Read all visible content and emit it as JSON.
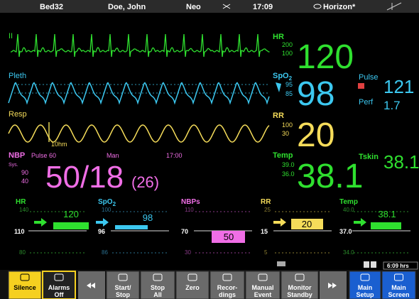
{
  "top_bar": {
    "bed": "Bed32",
    "patient": "Doe, John",
    "category": "Neo",
    "time": "17:09",
    "network": "Horizon*"
  },
  "waves": {
    "ecg": "II",
    "pleth": "Pleth",
    "resp": "Resp",
    "resp_scale": "10hm"
  },
  "numerics": {
    "hr": {
      "label": "HR",
      "high": "200",
      "low": "100",
      "value": "120"
    },
    "spo2": {
      "label": "SpO2",
      "high": "95",
      "low": "85",
      "value": "98"
    },
    "pulse": {
      "label": "Pulse",
      "value": "121",
      "perf_label": "Perf",
      "perf_value": "1.7"
    },
    "rr": {
      "label": "RR",
      "high": "100",
      "low": "30",
      "value": "20"
    },
    "nbp": {
      "label": "NBP",
      "pulse": "Pulse 60",
      "mode": "Man",
      "time": "17:00",
      "sys_label": "Sys.",
      "high": "90",
      "low": "40",
      "value": "50/18",
      "mean": "(26)"
    },
    "temp": {
      "label": "Temp",
      "high": "39.0",
      "low": "36.0",
      "value": "38.1"
    },
    "tskin": {
      "label": "Tskin",
      "value": "38.1"
    }
  },
  "trends": [
    {
      "label": "HR",
      "top": "140",
      "value": "120",
      "mid": "110",
      "bottom": "80"
    },
    {
      "label": "SpO2",
      "top": "100",
      "value": "98",
      "mid": "96",
      "bottom": "86"
    },
    {
      "label": "NBPs",
      "top": "110",
      "value": "50",
      "mid": "70",
      "bottom": "30"
    },
    {
      "label": "RR",
      "top": "25",
      "value": "20",
      "mid": "15",
      "bottom": "5"
    },
    {
      "label": "Temp",
      "top": "40.0",
      "value": "38.1",
      "mid": "37.0",
      "bottom": "34.0"
    }
  ],
  "trend_period": "6:09 hrs",
  "buttons": [
    [
      "Silence"
    ],
    [
      "Alarms",
      "Off"
    ],
    [
      "Start/",
      "Stop"
    ],
    [
      "Stop",
      "All"
    ],
    [
      "Zero"
    ],
    [
      "Recor-",
      "dings"
    ],
    [
      "Manual",
      "Event"
    ],
    [
      "Monitor",
      "Standby"
    ],
    [
      "Main",
      "Setup"
    ],
    [
      "Main",
      "Screen"
    ]
  ]
}
